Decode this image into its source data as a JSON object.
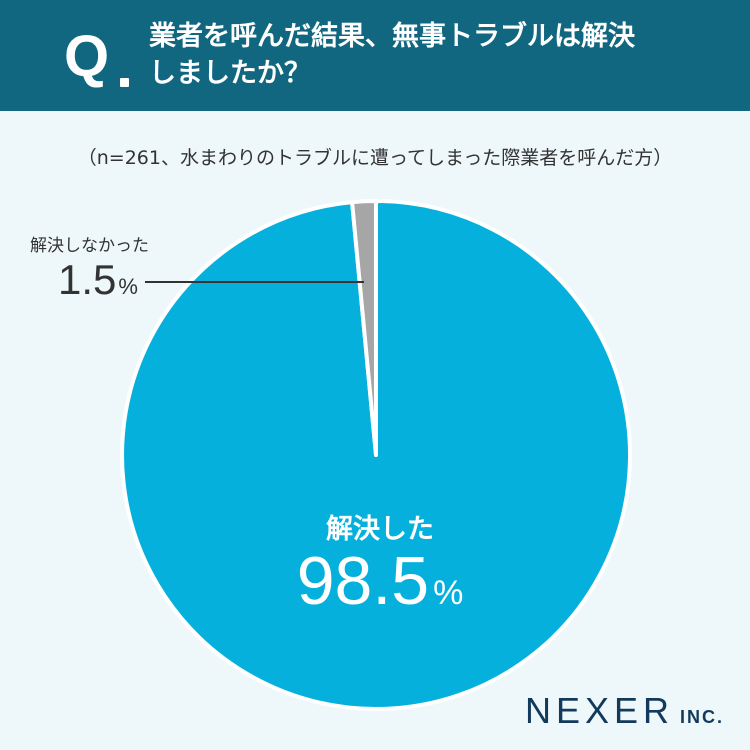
{
  "header": {
    "q_label": "Q",
    "question_line1": "業者を呼んだ結果、無事トラブルは解決",
    "question_line2": "しましたか？"
  },
  "note": "（n=261、水まわりのトラブルに遭ってしまった際業者を呼んだ方）",
  "chart_data": {
    "type": "pie",
    "categories": [
      "解決した",
      "解決しなかった"
    ],
    "values": [
      98.5,
      1.5
    ],
    "value_labels": [
      "98.5",
      "1.5"
    ],
    "unit": "%",
    "colors": [
      "#05b1dc",
      "#a6a6a6"
    ]
  },
  "logo": {
    "main": "NEXER",
    "sub": "INC."
  }
}
